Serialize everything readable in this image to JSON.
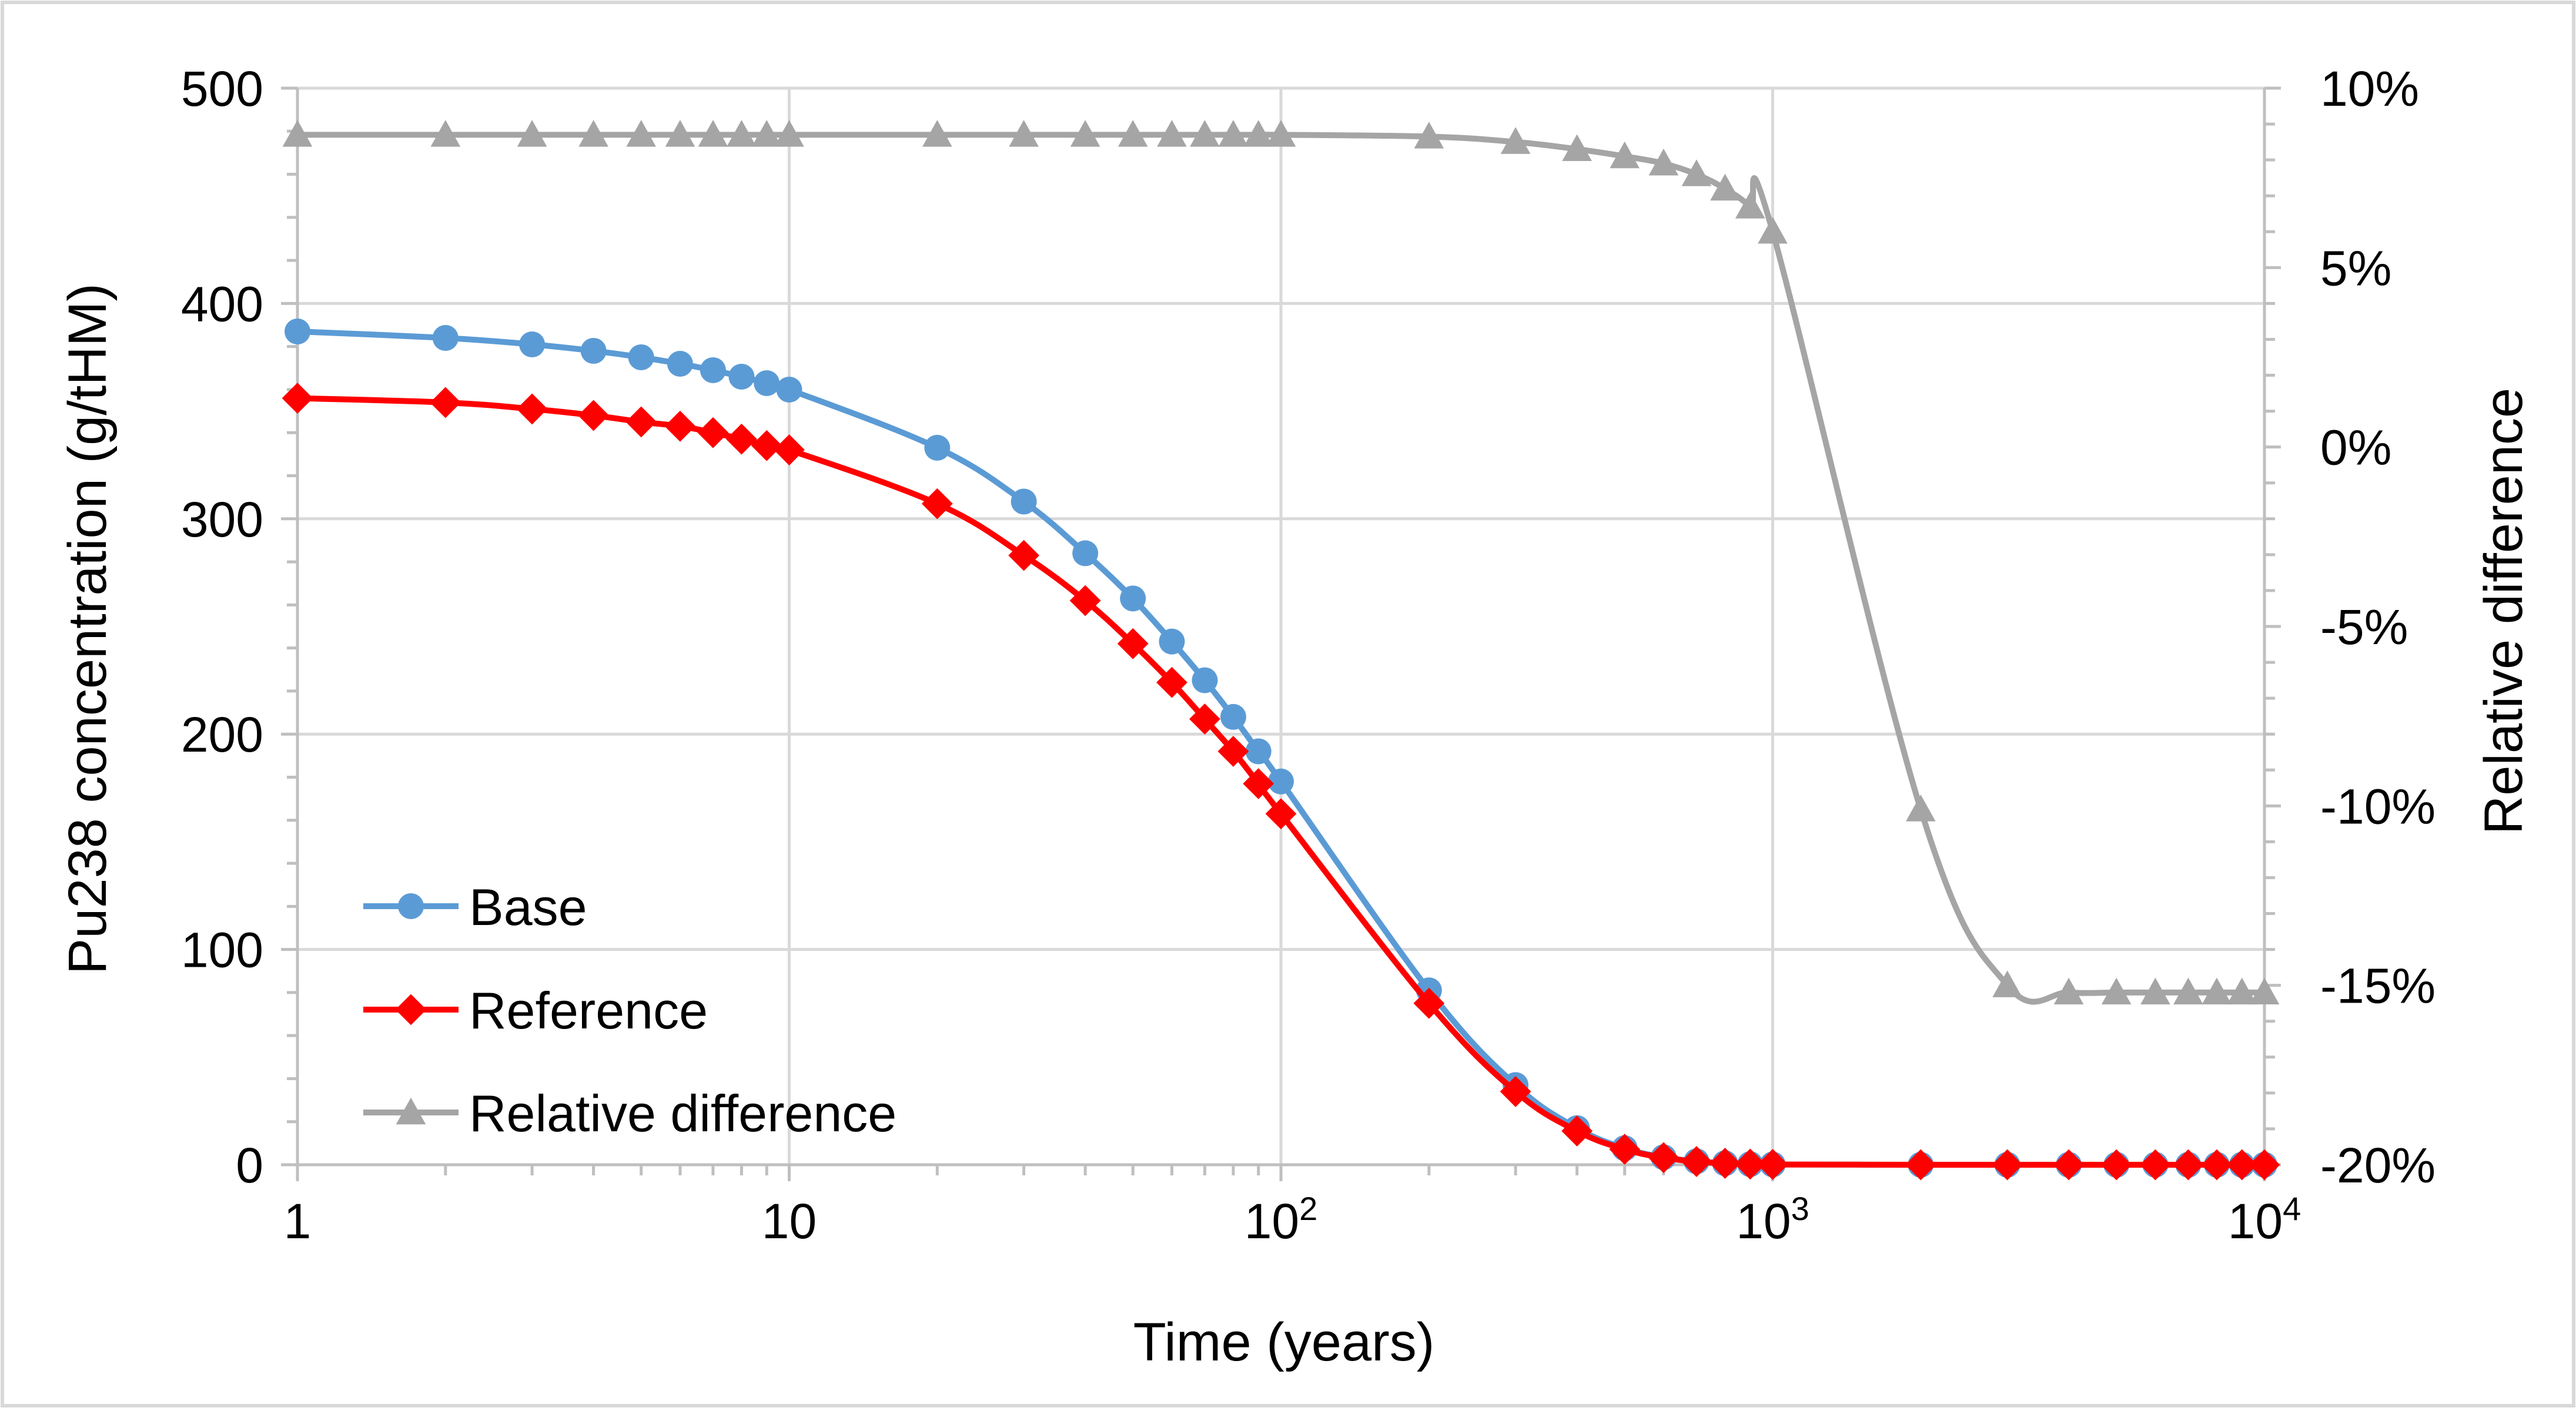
{
  "chart_data": {
    "type": "line",
    "title": "",
    "xlabel": "Time (years)",
    "ylabel": "Pu238 concentration (g/tHM)",
    "y2label": "Relative difference",
    "xscale": "log",
    "xlim": [
      1,
      10000
    ],
    "ylim": [
      0,
      500
    ],
    "y2lim": [
      -20,
      10
    ],
    "grid": true,
    "legend_position": "lower-left",
    "x_ticks": [
      {
        "value": 1,
        "base": "1",
        "exp": ""
      },
      {
        "value": 10,
        "base": "10",
        "exp": ""
      },
      {
        "value": 100,
        "base": "10",
        "exp": "2"
      },
      {
        "value": 1000,
        "base": "10",
        "exp": "3"
      },
      {
        "value": 10000,
        "base": "10",
        "exp": "4"
      }
    ],
    "y_ticks": [
      {
        "value": 0,
        "label": "0"
      },
      {
        "value": 100,
        "label": "100"
      },
      {
        "value": 200,
        "label": "200"
      },
      {
        "value": 300,
        "label": "300"
      },
      {
        "value": 400,
        "label": "400"
      },
      {
        "value": 500,
        "label": "500"
      }
    ],
    "y2_ticks": [
      {
        "value": -20,
        "label": "-20%"
      },
      {
        "value": -15,
        "label": "-15%"
      },
      {
        "value": -10,
        "label": "-10%"
      },
      {
        "value": -5,
        "label": "-5%"
      },
      {
        "value": 0,
        "label": "0%"
      },
      {
        "value": 5,
        "label": "5%"
      },
      {
        "value": 10,
        "label": "10%"
      }
    ],
    "x": [
      1,
      2,
      3,
      4,
      5,
      6,
      7,
      8,
      9,
      10,
      20,
      30,
      40,
      50,
      60,
      70,
      80,
      90,
      100,
      200,
      300,
      400,
      500,
      600,
      700,
      800,
      900,
      1000,
      2000,
      3000,
      4000,
      5000,
      6000,
      7000,
      8000,
      9000,
      10000
    ],
    "series": [
      {
        "name": "Base",
        "axis": "left",
        "color": "#5b9bd5",
        "marker": "circle",
        "values": [
          387,
          384,
          381,
          378,
          375,
          372,
          369,
          366,
          363,
          360,
          333,
          308,
          284,
          263,
          243,
          225,
          208,
          192,
          178,
          81,
          37,
          17,
          7.7,
          3.5,
          1.6,
          0.7,
          0.3,
          0.15,
          0,
          0,
          0,
          0,
          0,
          0,
          0,
          0,
          0
        ]
      },
      {
        "name": "Reference",
        "axis": "left",
        "color": "#ff0000",
        "marker": "diamond",
        "values": [
          356,
          354,
          351,
          348,
          345,
          343,
          340,
          337,
          334,
          332,
          307,
          283,
          262,
          242,
          224,
          207,
          192,
          177,
          163,
          75,
          34,
          15.7,
          7.2,
          3.3,
          1.5,
          0.7,
          0.3,
          0.15,
          0,
          0,
          0,
          0,
          0,
          0,
          0,
          0,
          0
        ]
      },
      {
        "name": "Relative difference",
        "axis": "right",
        "color": "#a5a5a5",
        "marker": "triangle",
        "values": [
          8.7,
          8.7,
          8.7,
          8.7,
          8.7,
          8.7,
          8.7,
          8.7,
          8.7,
          8.7,
          8.7,
          8.7,
          8.7,
          8.7,
          8.7,
          8.7,
          8.7,
          8.7,
          8.7,
          8.65,
          8.5,
          8.3,
          8.1,
          7.9,
          7.6,
          7.2,
          6.7,
          6.0,
          -10.1,
          -15.0,
          -15.2,
          -15.2,
          -15.2,
          -15.2,
          -15.2,
          -15.2,
          -15.2
        ]
      }
    ]
  }
}
